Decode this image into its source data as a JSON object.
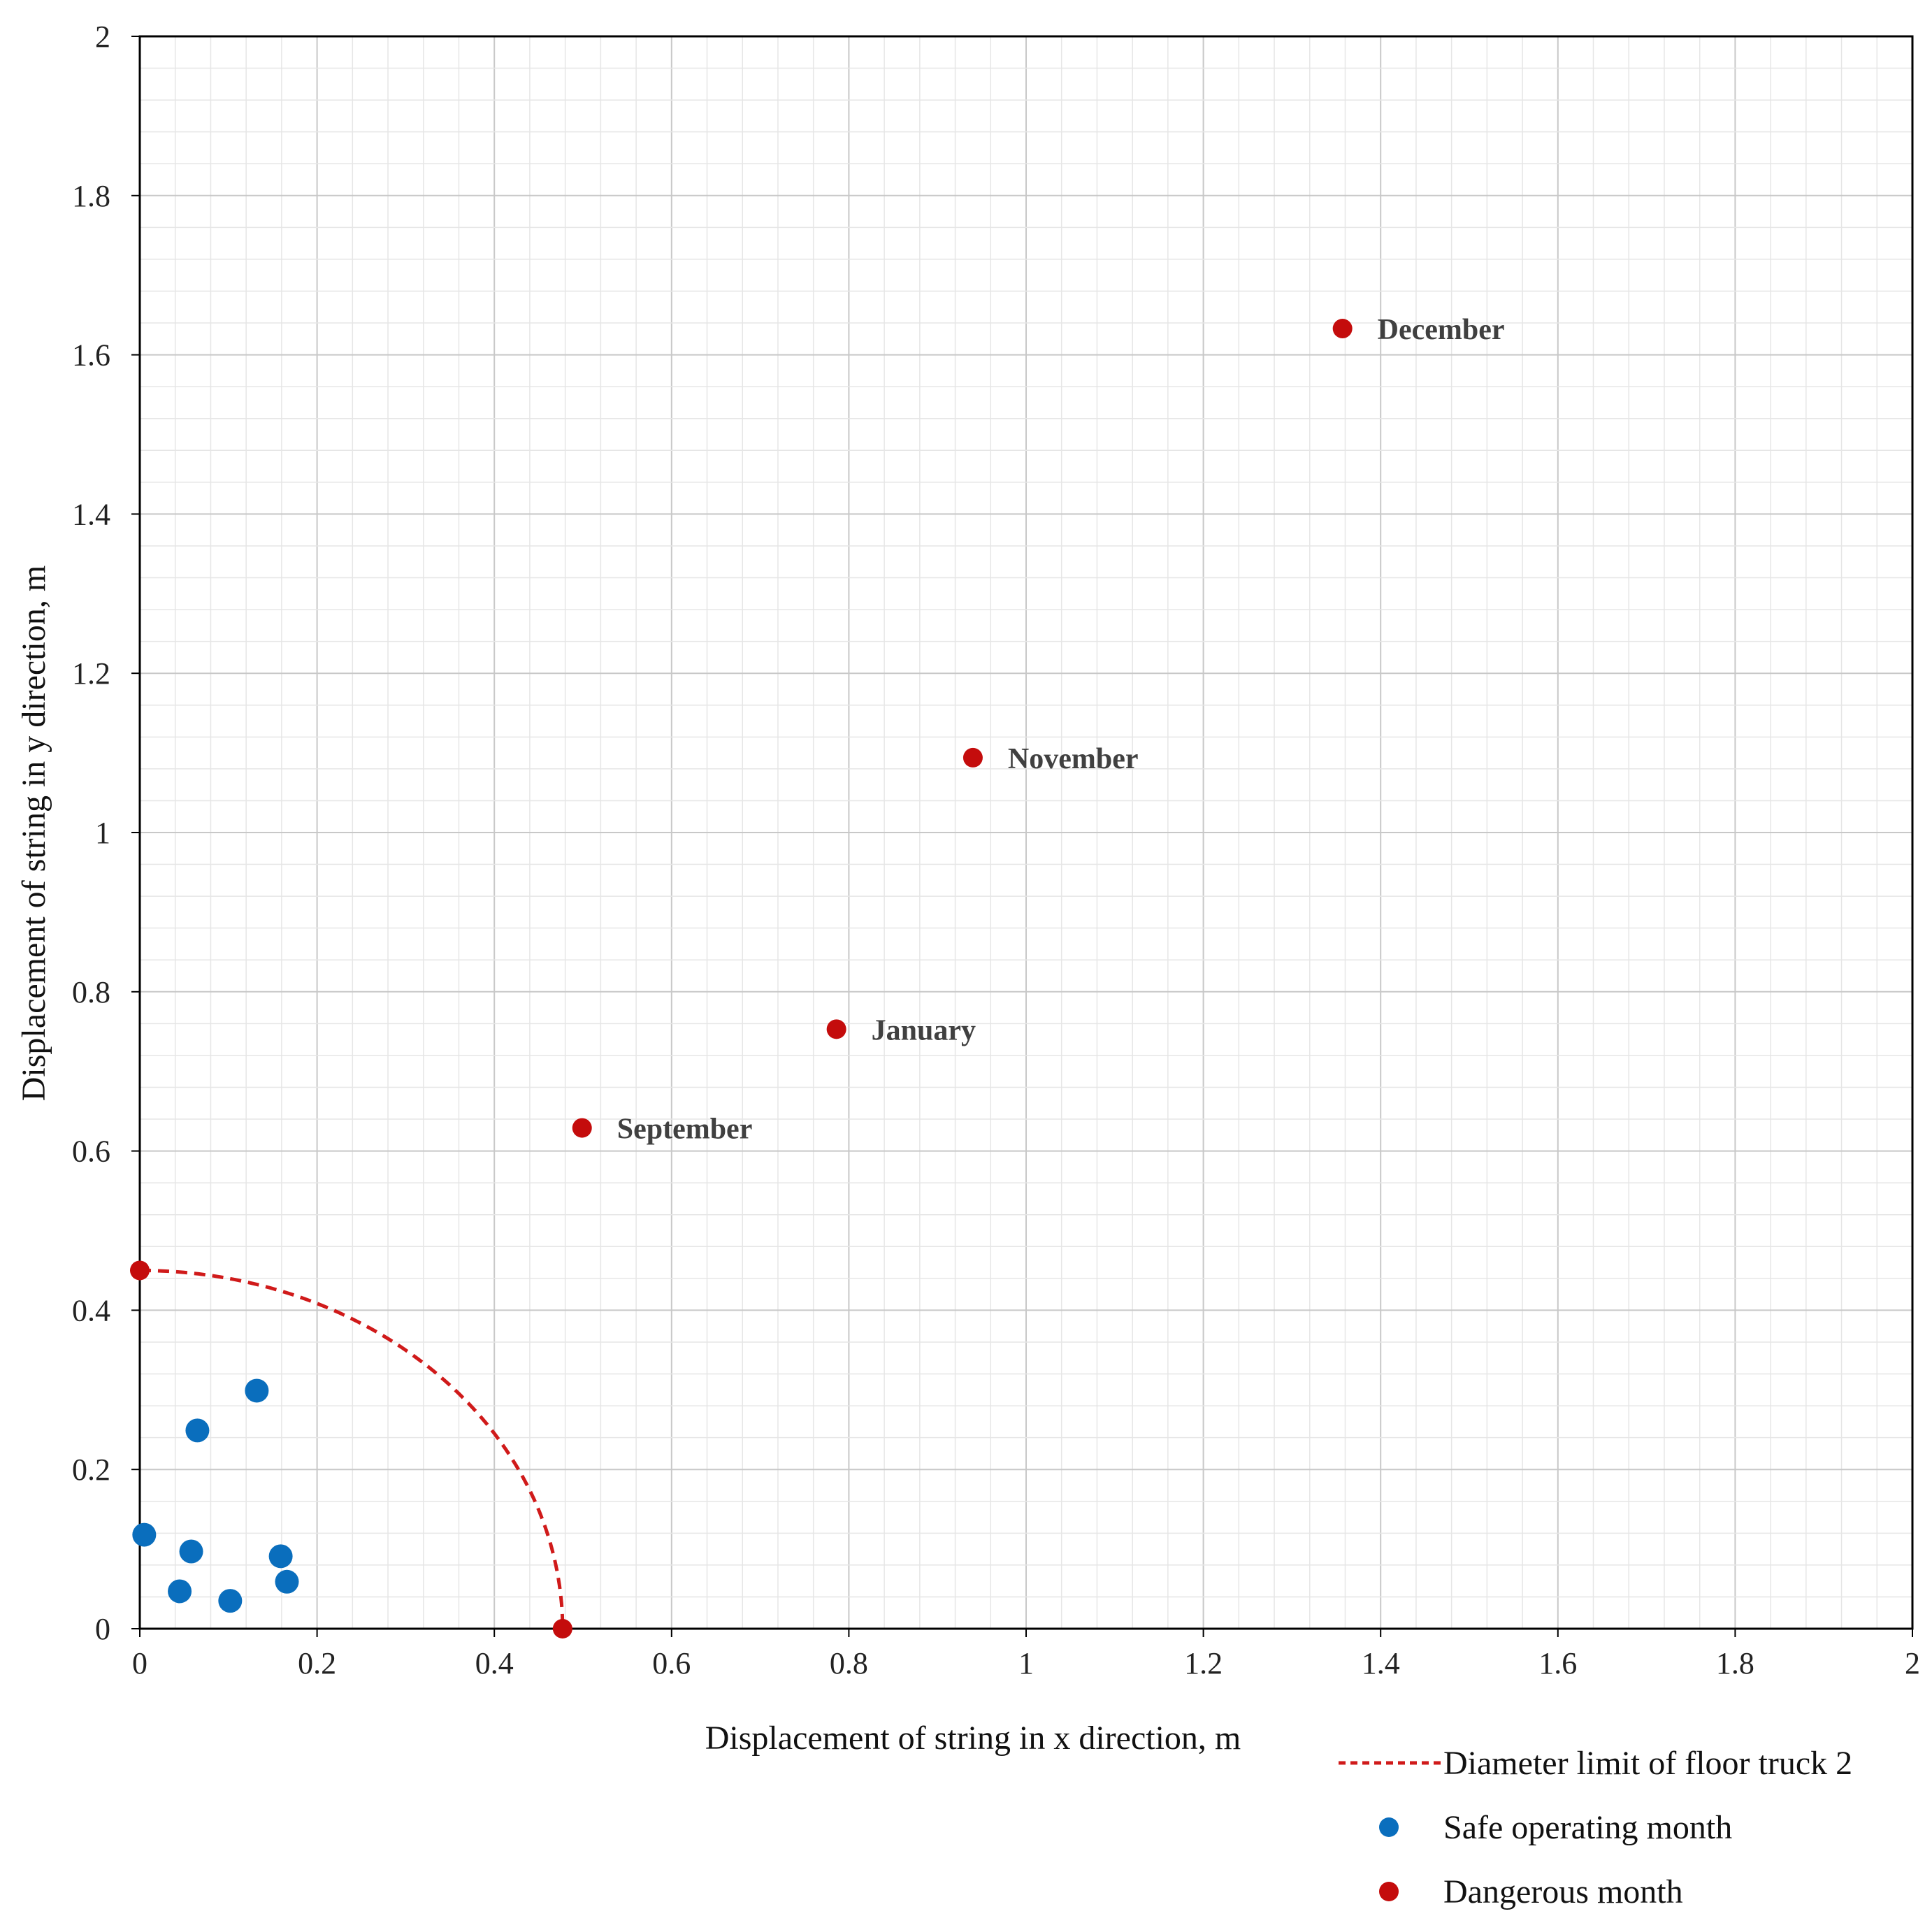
{
  "chart_data": {
    "type": "scatter",
    "title": "",
    "xlabel": "Displacement of string in x direction, m",
    "ylabel": "Displacement of string in y direction, m",
    "xlim": [
      0,
      2
    ],
    "ylim": [
      0,
      2
    ],
    "x_ticks": [
      "0",
      "0.2",
      "0.4",
      "0.6",
      "0.8",
      "1",
      "1.2",
      "1.4",
      "1.6",
      "1.8",
      "2"
    ],
    "y_ticks": [
      "0",
      "0.2",
      "0.4",
      "0.6",
      "0.8",
      "1",
      "1.2",
      "1.4",
      "1.6",
      "1.8",
      "2"
    ],
    "grid": true,
    "minor_grid": true,
    "legend_position": "bottom-right",
    "series": [
      {
        "name": "Diameter limit of floor truck 2",
        "kind": "dashed-curve",
        "color": "#d01a1a",
        "radius_x": 0.477,
        "radius_y": 0.45
      },
      {
        "name": "Safe operating month",
        "kind": "points",
        "color": "#0a6ebd",
        "points": [
          {
            "x": 0.005,
            "y": 0.118
          },
          {
            "x": 0.045,
            "y": 0.047
          },
          {
            "x": 0.058,
            "y": 0.097
          },
          {
            "x": 0.065,
            "y": 0.249
          },
          {
            "x": 0.102,
            "y": 0.035
          },
          {
            "x": 0.132,
            "y": 0.299
          },
          {
            "x": 0.159,
            "y": 0.091
          },
          {
            "x": 0.166,
            "y": 0.059
          }
        ]
      },
      {
        "name": "Dangerous month",
        "kind": "points",
        "color": "#c40c0c",
        "points": [
          {
            "x": 0.0,
            "y": 0.45,
            "label": ""
          },
          {
            "x": 0.477,
            "y": 0.0,
            "label": ""
          },
          {
            "x": 0.499,
            "y": 0.629,
            "label": "September"
          },
          {
            "x": 0.786,
            "y": 0.753,
            "label": "January"
          },
          {
            "x": 0.94,
            "y": 1.094,
            "label": "November"
          },
          {
            "x": 1.357,
            "y": 1.633,
            "label": "December"
          }
        ]
      }
    ]
  },
  "legend": {
    "items": [
      {
        "label": "Diameter limit of floor truck 2",
        "symbol": "dotted-line",
        "color": "#d01a1a"
      },
      {
        "label": "Safe operating month",
        "symbol": "dot",
        "color": "#0a6ebd"
      },
      {
        "label": "Dangerous month",
        "symbol": "dot",
        "color": "#c40c0c"
      }
    ]
  }
}
